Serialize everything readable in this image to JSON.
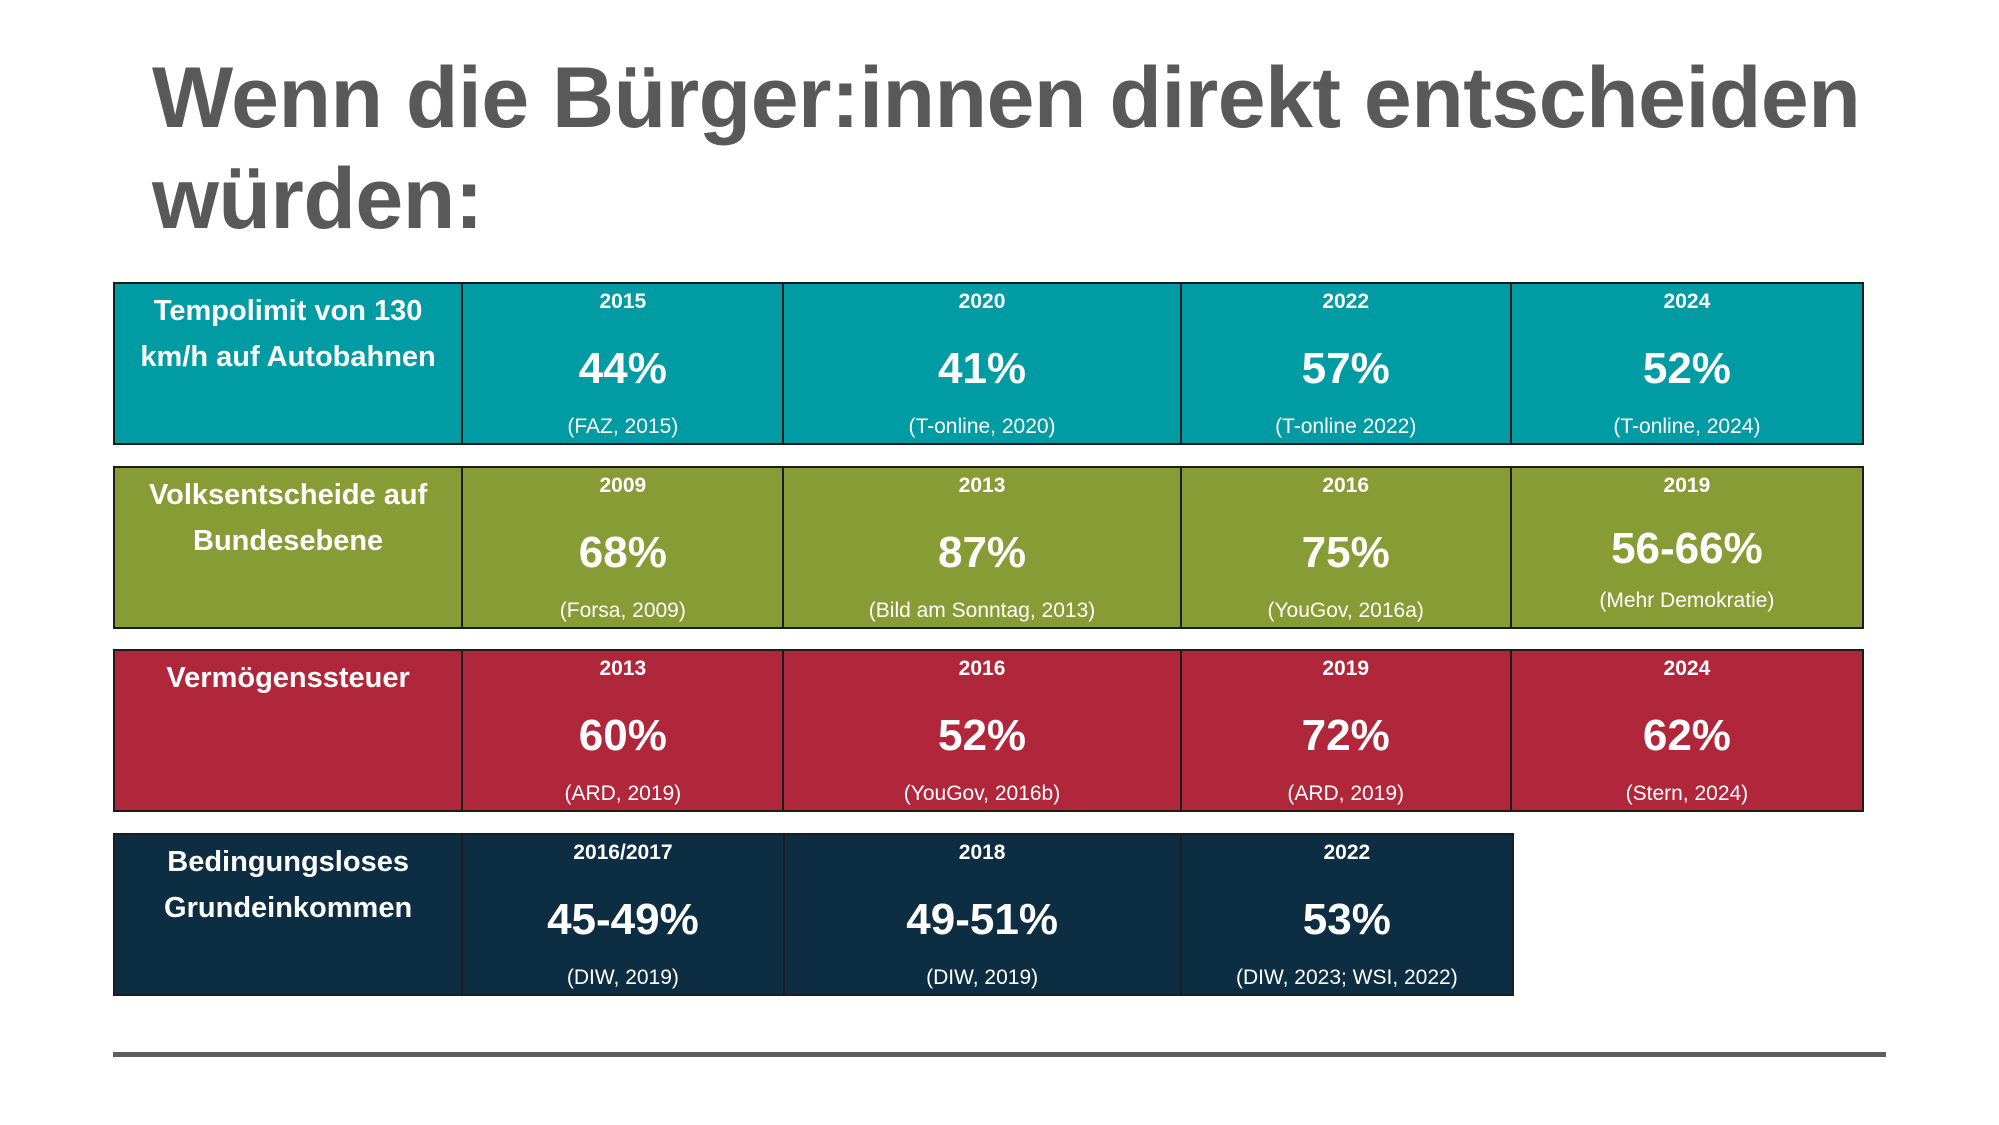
{
  "title": "Wenn die Bürger:innen direkt entscheiden würden:",
  "colors": {
    "title": "#595959",
    "tempolimit": "#009ba3",
    "volksentscheide": "#889c35",
    "vermoegenssteuer": "#b0273b",
    "grundeinkommen": "#0d2e42",
    "text": "#ffffff"
  },
  "rows": [
    {
      "label": "Tempolimit von 130 km/h auf Autobahnen",
      "cells": [
        {
          "year": "2015",
          "value": "44%",
          "source": "(FAZ, 2015)"
        },
        {
          "year": "2020",
          "value": "41%",
          "source": "(T-online, 2020)"
        },
        {
          "year": "2022",
          "value": "57%",
          "source": "(T-online 2022)"
        },
        {
          "year": "2024",
          "value": "52%",
          "source": "(T-online, 2024)"
        }
      ]
    },
    {
      "label": "Volksentscheide auf Bundesebene",
      "cells": [
        {
          "year": "2009",
          "value": "68%",
          "source": "(Forsa, 2009)"
        },
        {
          "year": "2013",
          "value": "87%",
          "source": "(Bild am Sonntag, 2013)"
        },
        {
          "year": "2016",
          "value": "75%",
          "source": "(YouGov, 2016a)"
        },
        {
          "year": "2019",
          "value": "56-66%",
          "source": "(Mehr Demokratie)"
        }
      ]
    },
    {
      "label": "Vermögenssteuer",
      "cells": [
        {
          "year": "2013",
          "value": "60%",
          "source": "(ARD, 2019)"
        },
        {
          "year": "2016",
          "value": "52%",
          "source": "(YouGov, 2016b)"
        },
        {
          "year": "2019",
          "value": "72%",
          "source": "(ARD, 2019)"
        },
        {
          "year": "2024",
          "value": "62%",
          "source": "(Stern, 2024)"
        }
      ]
    },
    {
      "label": "Bedingungsloses Grundeinkommen",
      "cells": [
        {
          "year": "2016/2017",
          "value": "45-49%",
          "source": "(DIW, 2019)"
        },
        {
          "year": "2018",
          "value": "49-51%",
          "source": "(DIW, 2019)"
        },
        {
          "year": "2022",
          "value": "53%",
          "source": "(DIW, 2023; WSI, 2022)"
        }
      ]
    }
  ]
}
